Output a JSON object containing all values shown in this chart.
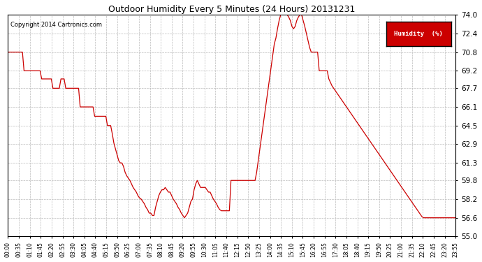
{
  "title": "Outdoor Humidity Every 5 Minutes (24 Hours) 20131231",
  "copyright": "Copyright 2014 Cartronics.com",
  "legend_label": "Humidity  (%)",
  "legend_bg": "#cc0000",
  "line_color": "#cc0000",
  "background_color": "#ffffff",
  "grid_color": "#bbbbbb",
  "ylim": [
    55.0,
    74.0
  ],
  "yticks": [
    55.0,
    56.6,
    58.2,
    59.8,
    61.3,
    62.9,
    64.5,
    66.1,
    67.7,
    69.2,
    70.8,
    72.4,
    74.0
  ],
  "xtick_labels": [
    "00:00",
    "00:35",
    "01:10",
    "01:45",
    "02:20",
    "02:55",
    "03:30",
    "04:05",
    "04:40",
    "05:15",
    "05:50",
    "06:25",
    "07:00",
    "07:35",
    "08:10",
    "08:45",
    "09:20",
    "09:55",
    "10:30",
    "11:05",
    "11:40",
    "12:15",
    "12:50",
    "13:25",
    "14:00",
    "14:35",
    "15:10",
    "15:45",
    "16:20",
    "16:55",
    "17:30",
    "18:05",
    "18:40",
    "19:15",
    "19:50",
    "20:25",
    "21:00",
    "21:35",
    "22:10",
    "22:45",
    "23:20",
    "23:55"
  ],
  "humidity_values": [
    70.8,
    70.8,
    70.8,
    70.8,
    70.8,
    70.8,
    70.8,
    70.8,
    70.8,
    70.8,
    69.2,
    69.2,
    69.2,
    69.2,
    69.2,
    69.2,
    69.2,
    69.2,
    69.2,
    69.2,
    69.2,
    68.5,
    68.5,
    68.5,
    68.5,
    68.5,
    68.5,
    68.5,
    67.7,
    67.7,
    67.7,
    67.7,
    67.7,
    68.5,
    68.5,
    68.5,
    67.7,
    67.7,
    67.7,
    67.7,
    67.7,
    67.7,
    67.7,
    67.7,
    67.7,
    66.1,
    66.1,
    66.1,
    66.1,
    66.1,
    66.1,
    66.1,
    66.1,
    66.1,
    65.3,
    65.3,
    65.3,
    65.3,
    65.3,
    65.3,
    65.3,
    65.3,
    64.5,
    64.5,
    64.5,
    63.8,
    63.0,
    62.5,
    62.0,
    61.5,
    61.3,
    61.3,
    61.0,
    60.5,
    60.2,
    60.0,
    59.8,
    59.5,
    59.2,
    59.0,
    58.8,
    58.5,
    58.3,
    58.2,
    58.0,
    57.8,
    57.5,
    57.3,
    57.0,
    57.0,
    56.8,
    56.8,
    57.5,
    58.0,
    58.5,
    58.8,
    59.0,
    59.0,
    59.2,
    59.0,
    58.8,
    58.8,
    58.5,
    58.2,
    58.0,
    57.8,
    57.5,
    57.3,
    57.0,
    56.8,
    56.6,
    56.8,
    57.0,
    57.5,
    58.0,
    58.2,
    59.0,
    59.5,
    59.8,
    59.5,
    59.2,
    59.2,
    59.2,
    59.2,
    59.0,
    58.8,
    58.8,
    58.5,
    58.2,
    58.0,
    57.8,
    57.5,
    57.3,
    57.2,
    57.2,
    57.2,
    57.2,
    57.2,
    57.2,
    59.8,
    59.8,
    59.8,
    59.8,
    59.8,
    59.8,
    59.8,
    59.8,
    59.8,
    59.8,
    59.8,
    59.8,
    59.8,
    59.8,
    59.8,
    59.8,
    60.5,
    61.5,
    62.5,
    63.5,
    64.5,
    65.5,
    66.5,
    67.5,
    68.5,
    69.5,
    70.5,
    71.5,
    72.0,
    72.8,
    73.5,
    74.0,
    74.0,
    74.0,
    74.0,
    74.0,
    73.8,
    73.5,
    73.0,
    72.8,
    73.0,
    73.5,
    73.8,
    74.0,
    74.0,
    73.5,
    73.0,
    72.4,
    71.8,
    71.2,
    70.8,
    70.8,
    70.8,
    70.8,
    70.8,
    69.2,
    69.2,
    69.2,
    69.2,
    69.2,
    69.2,
    68.5,
    68.2,
    67.9,
    67.7,
    67.5,
    67.3,
    67.1,
    66.9,
    66.7,
    66.5,
    66.3,
    66.1,
    65.9,
    65.7,
    65.5,
    65.3,
    65.1,
    64.9,
    64.7,
    64.5,
    64.3,
    64.1,
    63.9,
    63.7,
    63.5,
    63.3,
    63.1,
    62.9,
    62.7,
    62.5,
    62.3,
    62.1,
    61.9,
    61.7,
    61.5,
    61.3,
    61.1,
    60.9,
    60.7,
    60.5,
    60.3,
    60.1,
    59.9,
    59.7,
    59.5,
    59.3,
    59.1,
    58.9,
    58.7,
    58.5,
    58.3,
    58.1,
    57.9,
    57.7,
    57.5,
    57.3,
    57.1,
    56.9,
    56.7,
    56.6,
    56.6,
    56.6,
    56.6,
    56.6,
    56.6,
    56.6,
    56.6,
    56.6,
    56.6,
    56.6,
    56.6,
    56.6,
    56.6,
    56.6,
    56.6,
    56.6,
    56.6,
    56.6,
    56.6,
    56.6
  ]
}
